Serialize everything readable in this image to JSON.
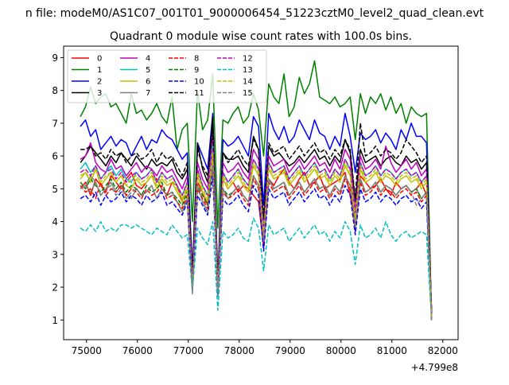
{
  "figure": {
    "suptitle": "n file: modeM0/AS1C07_001T01_9000006454_51223cztM0_level2_quad_clean.evt",
    "title": "Quadrant 0 module wise count rates with 100.0s bins."
  },
  "chart_data": {
    "type": "line",
    "title": "Quadrant 0 module wise count rates with 100.0s bins.",
    "xlabel": "",
    "ylabel": "",
    "x_offset_label": "+4.799e8",
    "xlim": [
      74550,
      82300
    ],
    "ylim": [
      0.4,
      9.35
    ],
    "xticks": [
      75000,
      76000,
      77000,
      78000,
      79000,
      80000,
      81000,
      82000
    ],
    "yticks": [
      1,
      2,
      3,
      4,
      5,
      6,
      7,
      8,
      9
    ],
    "grid": false,
    "legend": {
      "position": "top-left",
      "columns": 4
    },
    "x": {
      "start": 74880,
      "step": 100,
      "count": 70
    },
    "series": [
      {
        "name": "0",
        "color": "#ff0000",
        "dash": "solid",
        "values": [
          5.0,
          5.2,
          4.8,
          5.3,
          5.1,
          4.9,
          5.4,
          5.2,
          5.0,
          5.3,
          5.5,
          5.1,
          5.0,
          5.2,
          5.4,
          5.3,
          5.0,
          4.8,
          5.2,
          5.1,
          4.6,
          5.0,
          2.3,
          5.2,
          4.9,
          4.5,
          5.8,
          2.0,
          5.3,
          5.0,
          5.2,
          4.9,
          5.1,
          5.0,
          4.8,
          4.6,
          3.2,
          5.3,
          5.1,
          5.4,
          5.6,
          5.2,
          5.0,
          5.3,
          5.5,
          5.1,
          5.2,
          5.4,
          5.0,
          5.1,
          5.2,
          5.3,
          5.5,
          4.8,
          4.0,
          5.4,
          5.2,
          5.0,
          5.1,
          5.3,
          5.0,
          4.8,
          5.2,
          5.0,
          5.1,
          4.9,
          5.0,
          5.2,
          4.8,
          1.3
        ]
      },
      {
        "name": "1",
        "color": "#008000",
        "dash": "solid",
        "values": [
          7.2,
          7.5,
          8.1,
          7.6,
          7.8,
          7.9,
          7.5,
          7.6,
          7.3,
          7.0,
          7.9,
          7.3,
          7.4,
          7.1,
          7.3,
          7.6,
          7.2,
          7.0,
          7.8,
          6.2,
          6.8,
          7.0,
          4.0,
          8.0,
          6.8,
          7.1,
          8.5,
          3.8,
          7.1,
          7.0,
          7.3,
          7.5,
          7.0,
          7.2,
          7.9,
          7.4,
          6.0,
          8.2,
          7.8,
          7.6,
          8.5,
          7.2,
          7.5,
          8.4,
          7.9,
          8.2,
          8.9,
          7.8,
          7.7,
          7.6,
          7.8,
          7.5,
          7.6,
          7.8,
          6.5,
          7.9,
          7.3,
          7.8,
          7.6,
          7.9,
          7.4,
          7.8,
          7.3,
          7.6,
          7.0,
          7.5,
          7.3,
          7.2,
          7.3,
          1.0
        ]
      },
      {
        "name": "2",
        "color": "#0000ff",
        "dash": "solid",
        "values": [
          6.9,
          7.1,
          6.6,
          6.8,
          6.2,
          6.4,
          6.6,
          6.3,
          6.5,
          6.4,
          6.0,
          6.3,
          6.6,
          6.2,
          6.5,
          6.4,
          6.8,
          6.6,
          6.5,
          6.2,
          5.9,
          6.1,
          2.5,
          6.4,
          6.0,
          5.6,
          7.3,
          2.2,
          6.5,
          6.3,
          6.4,
          6.6,
          6.3,
          6.0,
          7.2,
          6.9,
          4.5,
          7.3,
          6.8,
          6.5,
          6.9,
          6.4,
          6.6,
          7.1,
          6.8,
          6.5,
          7.1,
          6.7,
          6.6,
          6.2,
          6.6,
          6.3,
          7.3,
          6.6,
          5.5,
          6.7,
          6.5,
          6.6,
          6.8,
          6.4,
          6.7,
          6.5,
          6.2,
          6.8,
          6.5,
          7.0,
          6.6,
          6.6,
          6.4,
          1.1
        ]
      },
      {
        "name": "3",
        "color": "#000000",
        "dash": "solid",
        "values": [
          5.8,
          6.0,
          6.3,
          6.1,
          5.9,
          5.7,
          6.0,
          5.8,
          6.1,
          5.9,
          5.7,
          6.0,
          5.8,
          5.6,
          5.9,
          5.7,
          5.8,
          5.7,
          5.9,
          5.5,
          5.3,
          5.6,
          2.2,
          6.4,
          5.6,
          5.2,
          7.2,
          2.0,
          6.1,
          5.9,
          5.9,
          6.0,
          5.7,
          5.5,
          6.6,
          6.2,
          4.0,
          6.3,
          6.0,
          6.1,
          5.9,
          5.7,
          5.8,
          6.0,
          5.8,
          6.0,
          6.2,
          5.9,
          6.0,
          5.7,
          6.0,
          5.8,
          6.5,
          6.1,
          4.6,
          6.2,
          5.8,
          5.9,
          6.0,
          5.7,
          5.9,
          6.0,
          5.8,
          5.7,
          6.0,
          5.8,
          5.9,
          5.6,
          5.8,
          1.2
        ]
      },
      {
        "name": "4",
        "color": "#bf00bf",
        "dash": "solid",
        "values": [
          5.9,
          6.0,
          6.4,
          5.8,
          5.6,
          5.5,
          5.9,
          5.6,
          5.7,
          5.4,
          5.6,
          5.8,
          5.5,
          5.7,
          5.6,
          5.4,
          5.7,
          5.5,
          5.6,
          5.3,
          5.0,
          5.4,
          2.1,
          5.8,
          5.3,
          5.0,
          6.7,
          1.9,
          5.8,
          5.5,
          5.6,
          5.8,
          5.5,
          5.3,
          6.2,
          5.9,
          3.8,
          6.0,
          5.7,
          5.8,
          5.9,
          5.5,
          5.7,
          5.9,
          5.6,
          5.8,
          6.0,
          5.7,
          5.8,
          5.5,
          5.9,
          5.6,
          6.2,
          5.9,
          4.3,
          6.0,
          5.6,
          5.7,
          5.9,
          5.6,
          6.3,
          5.8,
          5.5,
          5.7,
          5.9,
          5.6,
          5.8,
          5.4,
          5.6,
          1.1
        ]
      },
      {
        "name": "5",
        "color": "#00bfbf",
        "dash": "solid",
        "values": [
          5.6,
          5.8,
          5.5,
          5.7,
          5.3,
          5.5,
          5.7,
          5.4,
          5.6,
          5.3,
          5.2,
          5.5,
          5.3,
          5.4,
          5.6,
          5.2,
          5.5,
          5.3,
          5.4,
          5.1,
          4.8,
          5.2,
          2.0,
          5.6,
          5.1,
          4.8,
          6.3,
          1.8,
          5.5,
          5.2,
          5.4,
          5.6,
          5.3,
          5.1,
          5.9,
          5.6,
          3.7,
          5.8,
          5.5,
          5.6,
          5.7,
          5.3,
          5.5,
          5.7,
          5.4,
          5.6,
          5.8,
          5.5,
          5.6,
          5.3,
          5.6,
          5.4,
          5.9,
          5.6,
          4.1,
          5.8,
          5.4,
          5.5,
          5.7,
          5.4,
          5.6,
          5.5,
          5.3,
          5.5,
          5.6,
          5.4,
          5.5,
          5.2,
          5.4,
          1.0
        ]
      },
      {
        "name": "6",
        "color": "#bfbf00",
        "dash": "solid",
        "values": [
          5.3,
          5.5,
          5.2,
          5.6,
          5.1,
          5.3,
          5.5,
          5.2,
          5.4,
          5.1,
          5.0,
          5.3,
          5.1,
          5.2,
          5.4,
          5.0,
          5.3,
          5.1,
          5.2,
          4.9,
          4.6,
          5.0,
          1.9,
          5.4,
          4.9,
          4.6,
          6.0,
          1.8,
          5.3,
          5.0,
          5.2,
          5.4,
          5.1,
          4.9,
          5.7,
          5.4,
          3.6,
          5.6,
          5.3,
          5.4,
          5.5,
          5.1,
          5.3,
          5.5,
          5.2,
          5.4,
          5.6,
          5.3,
          5.4,
          5.1,
          5.4,
          5.2,
          5.7,
          5.4,
          4.0,
          5.6,
          5.2,
          5.3,
          5.5,
          5.2,
          5.4,
          5.3,
          5.1,
          5.3,
          5.4,
          5.2,
          5.3,
          5.0,
          5.2,
          1.0
        ]
      },
      {
        "name": "7",
        "color": "#808080",
        "dash": "solid",
        "values": [
          5.0,
          5.1,
          5.4,
          5.2,
          4.8,
          5.0,
          5.2,
          4.9,
          5.1,
          4.8,
          4.7,
          5.0,
          4.8,
          4.9,
          5.1,
          4.7,
          5.0,
          4.8,
          4.9,
          4.6,
          4.3,
          4.7,
          1.8,
          5.1,
          4.6,
          4.3,
          5.7,
          1.7,
          5.0,
          4.7,
          4.9,
          5.1,
          4.8,
          4.6,
          5.4,
          5.1,
          3.4,
          5.3,
          5.0,
          5.1,
          5.2,
          4.8,
          5.0,
          5.2,
          4.9,
          5.1,
          5.3,
          5.0,
          5.1,
          4.8,
          5.1,
          4.9,
          5.4,
          5.1,
          3.8,
          5.3,
          4.9,
          5.0,
          5.2,
          4.9,
          5.1,
          5.0,
          4.8,
          5.0,
          5.1,
          4.9,
          5.0,
          4.7,
          4.9,
          1.0
        ]
      },
      {
        "name": "8",
        "color": "#ff0000",
        "dash": "dashed",
        "values": [
          5.1,
          4.9,
          5.0,
          4.7,
          5.2,
          4.8,
          5.0,
          4.9,
          5.1,
          4.8,
          5.0,
          4.9,
          4.7,
          5.0,
          4.8,
          4.9,
          5.1,
          4.7,
          4.8,
          4.6,
          4.4,
          4.8,
          2.0,
          5.0,
          4.7,
          4.4,
          5.6,
          1.9,
          4.9,
          4.7,
          4.8,
          5.0,
          4.7,
          4.5,
          5.3,
          5.0,
          3.3,
          5.2,
          4.9,
          5.0,
          5.1,
          4.7,
          4.9,
          5.1,
          4.8,
          5.0,
          5.2,
          4.9,
          5.0,
          4.7,
          5.0,
          4.8,
          5.3,
          5.0,
          3.7,
          5.2,
          4.8,
          4.9,
          5.1,
          4.8,
          5.0,
          4.9,
          4.7,
          4.9,
          5.0,
          4.8,
          4.9,
          4.6,
          4.8,
          1.0
        ]
      },
      {
        "name": "9",
        "color": "#008000",
        "dash": "dashed",
        "values": [
          5.2,
          5.0,
          5.3,
          5.1,
          4.9,
          5.1,
          5.3,
          5.0,
          5.2,
          4.9,
          5.1,
          5.0,
          4.8,
          5.1,
          4.9,
          5.0,
          5.2,
          4.8,
          4.9,
          4.7,
          4.5,
          4.9,
          2.0,
          5.1,
          4.8,
          4.5,
          5.7,
          1.9,
          5.0,
          4.8,
          4.9,
          5.1,
          4.8,
          4.6,
          5.4,
          5.1,
          3.4,
          5.3,
          5.0,
          5.1,
          5.2,
          4.8,
          5.0,
          5.2,
          4.9,
          5.1,
          5.3,
          5.0,
          5.1,
          4.8,
          5.1,
          4.9,
          5.4,
          5.1,
          3.8,
          5.3,
          4.9,
          5.0,
          5.2,
          4.9,
          5.1,
          5.0,
          4.8,
          5.0,
          5.1,
          4.9,
          5.0,
          4.7,
          4.9,
          1.0
        ]
      },
      {
        "name": "10",
        "color": "#0000ff",
        "dash": "dashed",
        "values": [
          4.7,
          4.8,
          4.6,
          4.9,
          4.5,
          4.8,
          4.6,
          4.7,
          4.9,
          4.6,
          4.8,
          4.7,
          4.5,
          4.8,
          4.6,
          4.7,
          4.9,
          4.5,
          4.6,
          4.4,
          4.2,
          4.6,
          1.9,
          4.8,
          4.5,
          4.2,
          5.4,
          1.8,
          4.7,
          4.5,
          4.6,
          4.8,
          4.5,
          4.3,
          5.1,
          4.8,
          3.1,
          5.0,
          4.7,
          4.8,
          4.9,
          4.5,
          4.7,
          4.9,
          4.6,
          4.8,
          5.0,
          4.7,
          4.8,
          4.5,
          4.8,
          4.6,
          5.1,
          4.8,
          3.6,
          5.0,
          4.6,
          4.7,
          4.9,
          4.6,
          4.8,
          4.7,
          4.5,
          4.7,
          4.8,
          4.6,
          4.7,
          4.4,
          4.6,
          1.0
        ]
      },
      {
        "name": "11",
        "color": "#000000",
        "dash": "dashed",
        "values": [
          6.2,
          6.2,
          6.3,
          6.0,
          6.1,
          5.9,
          6.2,
          6.0,
          6.1,
          5.8,
          6.0,
          6.1,
          5.9,
          6.0,
          6.2,
          5.8,
          6.1,
          5.9,
          6.0,
          5.7,
          5.4,
          5.8,
          2.3,
          6.2,
          5.7,
          5.4,
          6.8,
          2.1,
          6.1,
          5.8,
          6.0,
          6.2,
          5.9,
          5.7,
          6.5,
          6.2,
          4.1,
          6.4,
          6.1,
          6.2,
          6.3,
          5.9,
          6.1,
          6.3,
          6.0,
          6.2,
          6.4,
          6.1,
          6.2,
          5.9,
          6.2,
          6.0,
          6.5,
          6.2,
          4.7,
          7.0,
          6.0,
          6.1,
          6.3,
          6.0,
          6.2,
          6.1,
          5.9,
          6.1,
          6.5,
          6.3,
          6.1,
          5.8,
          6.0,
          1.2
        ]
      },
      {
        "name": "12",
        "color": "#bf00bf",
        "dash": "dashed",
        "values": [
          5.5,
          5.6,
          5.4,
          5.7,
          5.3,
          5.5,
          5.6,
          5.3,
          5.5,
          5.2,
          5.4,
          5.5,
          5.3,
          5.4,
          5.6,
          5.2,
          5.5,
          5.3,
          5.4,
          5.1,
          4.8,
          5.2,
          2.1,
          5.6,
          5.1,
          4.8,
          6.2,
          1.9,
          5.5,
          5.2,
          5.4,
          5.6,
          5.3,
          5.1,
          5.9,
          5.6,
          3.7,
          5.8,
          5.5,
          5.6,
          5.7,
          5.3,
          5.5,
          5.7,
          5.4,
          5.6,
          5.8,
          5.5,
          5.6,
          5.3,
          5.6,
          5.4,
          5.9,
          5.6,
          4.2,
          5.8,
          5.4,
          5.5,
          5.7,
          5.4,
          5.6,
          5.5,
          5.3,
          5.5,
          5.6,
          5.4,
          5.5,
          5.2,
          5.4,
          1.1
        ]
      },
      {
        "name": "13",
        "color": "#00bfbf",
        "dash": "dashed",
        "values": [
          3.8,
          3.7,
          3.9,
          3.7,
          4.0,
          3.7,
          3.8,
          3.7,
          3.9,
          3.9,
          3.8,
          3.9,
          3.8,
          3.7,
          3.6,
          3.8,
          3.7,
          3.6,
          3.9,
          3.7,
          3.5,
          3.6,
          1.9,
          3.8,
          3.5,
          3.3,
          4.0,
          1.3,
          3.7,
          3.5,
          3.6,
          3.8,
          3.5,
          3.4,
          4.1,
          3.8,
          2.5,
          3.9,
          3.6,
          3.7,
          3.8,
          3.4,
          3.6,
          3.8,
          3.5,
          3.7,
          3.9,
          3.6,
          3.7,
          3.4,
          3.7,
          3.5,
          4.0,
          3.7,
          2.7,
          3.9,
          3.5,
          3.6,
          3.8,
          3.5,
          4.0,
          3.6,
          3.4,
          3.6,
          3.7,
          3.5,
          3.6,
          3.7,
          3.6,
          1.0
        ]
      },
      {
        "name": "14",
        "color": "#bfbf00",
        "dash": "dashed",
        "values": [
          5.4,
          5.5,
          5.3,
          5.6,
          5.2,
          5.4,
          5.5,
          5.2,
          5.4,
          5.1,
          5.3,
          5.4,
          5.2,
          5.3,
          5.5,
          5.1,
          5.4,
          5.2,
          5.3,
          5.0,
          4.7,
          5.1,
          2.0,
          5.5,
          5.0,
          4.7,
          6.1,
          1.9,
          5.4,
          5.1,
          5.3,
          5.5,
          5.2,
          5.0,
          5.8,
          5.5,
          3.6,
          5.7,
          5.4,
          5.5,
          5.6,
          5.2,
          5.4,
          5.6,
          5.3,
          5.5,
          5.7,
          5.4,
          5.5,
          5.2,
          5.5,
          5.3,
          5.8,
          5.5,
          4.1,
          5.7,
          5.3,
          5.4,
          5.6,
          5.3,
          5.5,
          5.4,
          5.2,
          5.4,
          5.5,
          5.3,
          5.4,
          5.1,
          5.3,
          1.1
        ]
      },
      {
        "name": "15",
        "color": "#808080",
        "dash": "dashed",
        "values": [
          5.0,
          5.1,
          4.9,
          5.2,
          4.8,
          5.0,
          5.1,
          4.8,
          5.0,
          4.7,
          4.9,
          5.0,
          4.8,
          4.9,
          5.1,
          4.7,
          5.0,
          4.8,
          4.9,
          4.6,
          4.3,
          4.7,
          1.9,
          5.1,
          4.6,
          4.3,
          5.7,
          1.8,
          5.0,
          4.7,
          4.9,
          5.1,
          4.8,
          4.6,
          5.4,
          5.1,
          3.4,
          5.3,
          5.0,
          5.1,
          5.2,
          4.8,
          5.0,
          5.2,
          4.9,
          5.1,
          5.3,
          5.0,
          5.1,
          4.8,
          5.1,
          4.9,
          5.4,
          5.1,
          3.8,
          5.3,
          4.9,
          5.0,
          5.2,
          4.9,
          5.1,
          5.0,
          4.8,
          5.0,
          5.1,
          4.9,
          4.5,
          4.7,
          4.9,
          1.0
        ]
      }
    ]
  }
}
